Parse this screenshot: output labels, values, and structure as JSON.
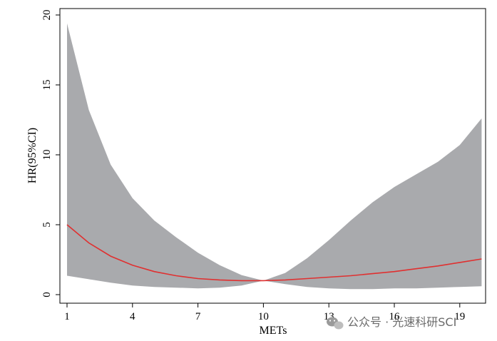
{
  "chart_data": {
    "type": "line",
    "xlabel": "METs",
    "ylabel": "HR(95%CI)",
    "xlim": [
      0.5,
      20.5
    ],
    "ylim": [
      0,
      20
    ],
    "xticks": [
      1,
      4,
      7,
      10,
      13,
      16,
      19
    ],
    "yticks": [
      0,
      5,
      10,
      15,
      20
    ],
    "grid": false,
    "series": [
      {
        "role": "estimate",
        "color": "#e03030",
        "x": [
          1,
          2,
          3,
          4,
          5,
          6,
          7,
          8,
          9,
          10,
          11,
          12,
          13,
          14,
          15,
          16,
          17,
          18,
          19,
          20
        ],
        "y": [
          5.0,
          3.7,
          2.75,
          2.1,
          1.65,
          1.35,
          1.15,
          1.05,
          1.0,
          1.0,
          1.05,
          1.15,
          1.25,
          1.35,
          1.5,
          1.65,
          1.85,
          2.05,
          2.3,
          2.55
        ]
      }
    ],
    "band": {
      "role": "95% CI",
      "color": "#a9aaad",
      "x": [
        1,
        2,
        3,
        4,
        5,
        6,
        7,
        8,
        9,
        10,
        11,
        12,
        13,
        14,
        15,
        16,
        17,
        18,
        19,
        20
      ],
      "upper": [
        19.4,
        13.2,
        9.3,
        6.9,
        5.3,
        4.1,
        3.0,
        2.1,
        1.4,
        1.0,
        1.55,
        2.6,
        3.9,
        5.3,
        6.6,
        7.7,
        8.6,
        9.5,
        10.7,
        12.6
      ],
      "lower": [
        1.35,
        1.1,
        0.85,
        0.65,
        0.55,
        0.5,
        0.45,
        0.5,
        0.65,
        1.0,
        0.75,
        0.55,
        0.45,
        0.4,
        0.4,
        0.45,
        0.45,
        0.5,
        0.55,
        0.6
      ]
    }
  },
  "watermark": {
    "text": "公众号 · 光速科研SCI",
    "icon": "wechat-icon"
  }
}
